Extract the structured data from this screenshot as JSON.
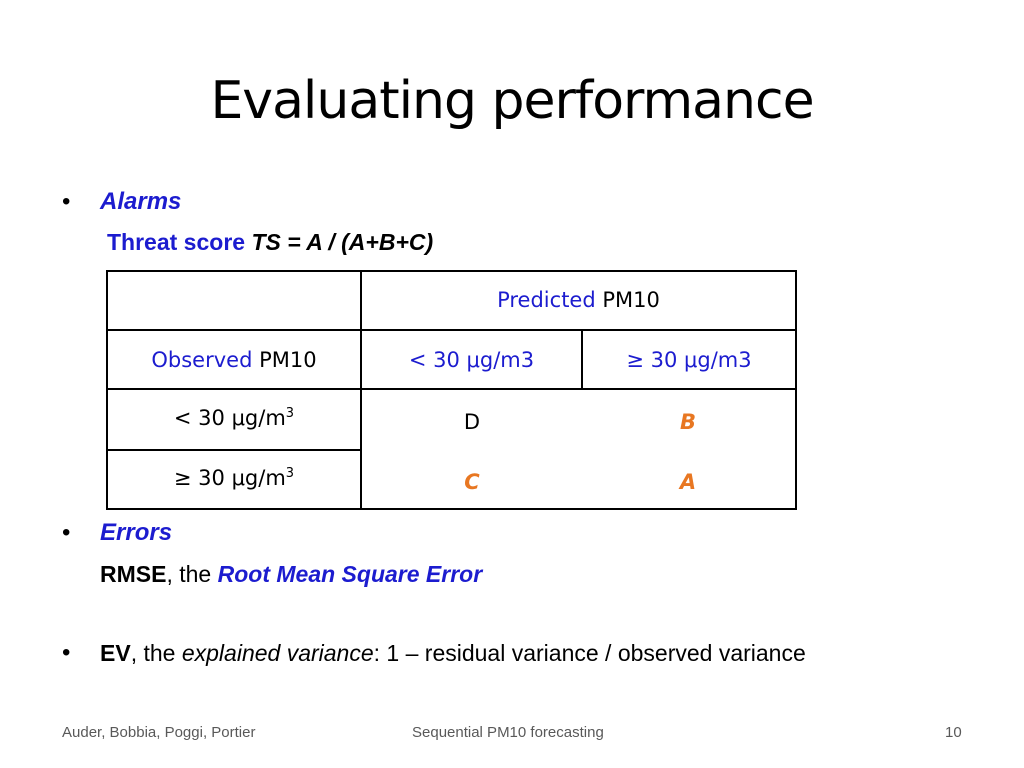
{
  "slide": {
    "title": "Evaluating performance"
  },
  "alarms": {
    "bullet": "•",
    "heading": "Alarms",
    "ts_label": "Threat score",
    "ts_formula": "TS = A / (A+B+C)"
  },
  "table": {
    "predicted_label": "Predicted",
    "predicted_var": "PM10",
    "observed_label": "Observed",
    "observed_var": "PM10",
    "col1": "< 30 μg/m3",
    "col2": "≥ 30 μg/m3",
    "row1_label": "< 30 μg/m",
    "row2_label": "≥ 30 μg/m",
    "row_sup": "3",
    "cell_r1c1": "D",
    "cell_r1c2": "B",
    "cell_r2c1": "C",
    "cell_r2c2": "A"
  },
  "errors": {
    "bullet": "•",
    "heading": "Errors",
    "rmse_abbr": "RMSE",
    "rmse_sep": ", the ",
    "rmse_full": "Root Mean Square Error"
  },
  "ev": {
    "bullet": "•",
    "abbr": "EV",
    "sep": ", the ",
    "term": "explained variance",
    "rest": ": 1 – residual variance  / observed variance"
  },
  "footer": {
    "authors": "Auder, Bobbia, Poggi, Portier",
    "center": "Sequential PM10 forecasting",
    "page": "10"
  },
  "colors": {
    "accent_blue": "#1c1ccf",
    "accent_orange": "#e87722",
    "footer_gray": "#595959"
  }
}
